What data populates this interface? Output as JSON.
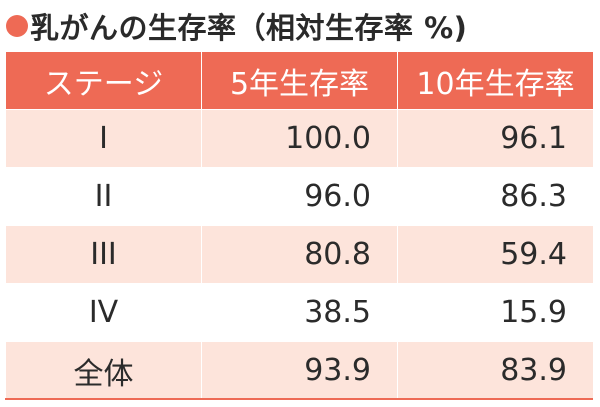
{
  "title": "乳がんの生存率（相対生存率 %)",
  "colors": {
    "accent": "#ee6a55",
    "row_tint": "#fde4db"
  },
  "table": {
    "headers": [
      "ステージ",
      "5年生存率",
      "10年生存率"
    ],
    "rows": [
      {
        "stage": "I",
        "five_year": "100.0",
        "ten_year": "96.1"
      },
      {
        "stage": "II",
        "five_year": "96.0",
        "ten_year": "86.3"
      },
      {
        "stage": "III",
        "five_year": "80.8",
        "ten_year": "59.4"
      },
      {
        "stage": "IV",
        "five_year": "38.5",
        "ten_year": "15.9"
      },
      {
        "stage": "全体",
        "five_year": "93.9",
        "ten_year": "83.9"
      }
    ]
  }
}
